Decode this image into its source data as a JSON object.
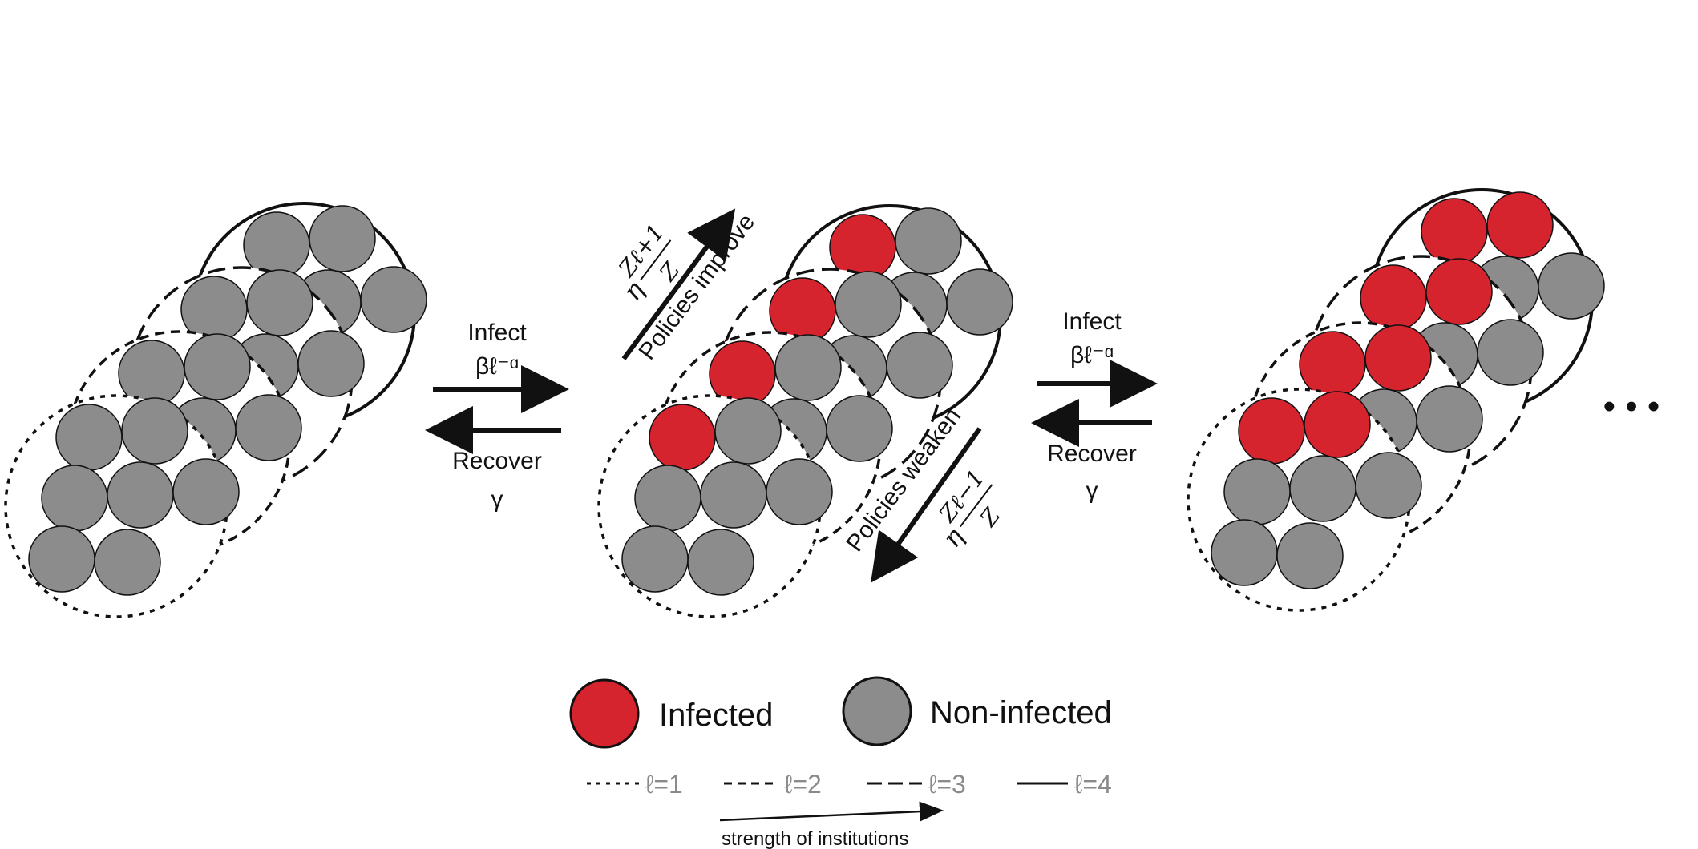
{
  "colors": {
    "infected": "#d6242f",
    "non_infected": "#8c8c8c",
    "outline": "#111111",
    "legend_grey_text": "#8a8a8a"
  },
  "transitions": {
    "infect_label": "Infect",
    "infect_rate": "βℓ⁻ᵅ",
    "recover_label": "Recover",
    "recover_rate": "γ"
  },
  "policies": {
    "improve_label": "Policies improve",
    "improve_rate_prefix": "η",
    "improve_rate_num": "Zℓ+1",
    "improve_rate_den": "Z",
    "weaken_label": "Policies weaken",
    "weaken_rate_prefix": "η",
    "weaken_rate_num": "Zℓ−1",
    "weaken_rate_den": "Z"
  },
  "ellipsis": "• • •",
  "legend": {
    "infected": "Infected",
    "non_infected": "Non-infected",
    "levels": [
      "ℓ=1",
      "ℓ=2",
      "ℓ=3",
      "ℓ=4"
    ],
    "strength_label": "strength of institutions"
  },
  "groups": [
    {
      "infected_per_level": [
        0,
        0,
        0,
        0
      ]
    },
    {
      "infected_per_level": [
        1,
        1,
        1,
        1
      ]
    },
    {
      "infected_per_level": [
        2,
        2,
        2,
        2
      ]
    }
  ]
}
